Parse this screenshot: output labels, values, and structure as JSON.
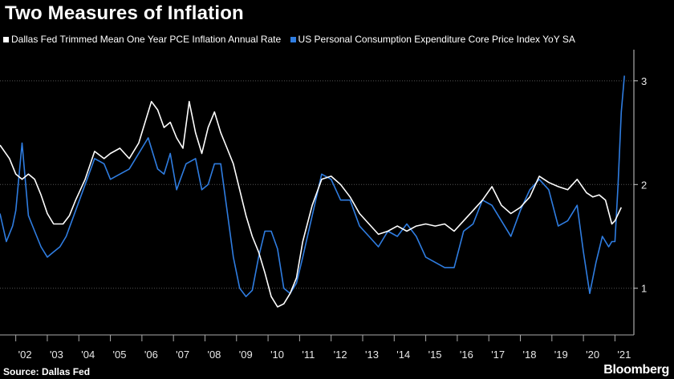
{
  "title": "Two Measures of Inflation",
  "source": "Source: Dallas Fed",
  "brand": "Bloomberg",
  "colors": {
    "background": "#000000",
    "series1": "#ffffff",
    "series2": "#2f7de1",
    "grid": "#555555"
  },
  "chart_data": {
    "type": "line",
    "title": "Two Measures of Inflation",
    "xlabel": "",
    "ylabel": "",
    "xlim": [
      2001.5,
      2021.6
    ],
    "ylim": [
      0.55,
      3.3
    ],
    "yticks": [
      1,
      2,
      3
    ],
    "xtick_labels": [
      "'02",
      "'03",
      "'04",
      "'05",
      "'06",
      "'07",
      "'08",
      "'09",
      "'10",
      "'11",
      "'12",
      "'13",
      "'14",
      "'15",
      "'16",
      "'17",
      "'18",
      "'19",
      "'20",
      "'21"
    ],
    "xtick_years": [
      2002,
      2003,
      2004,
      2005,
      2006,
      2007,
      2008,
      2009,
      2010,
      2011,
      2012,
      2013,
      2014,
      2015,
      2016,
      2017,
      2018,
      2019,
      2020,
      2021
    ],
    "grid": "horizontal-dotted",
    "legend_position": "top-left",
    "series": [
      {
        "name": "Dallas Fed Trimmed Mean One Year PCE Inflation Annual Rate",
        "color": "#ffffff",
        "x": [
          2001.5,
          2001.8,
          2002.0,
          2002.2,
          2002.4,
          2002.6,
          2002.8,
          2003.0,
          2003.2,
          2003.5,
          2003.7,
          2003.9,
          2004.2,
          2004.5,
          2004.8,
          2005.0,
          2005.3,
          2005.6,
          2005.9,
          2006.1,
          2006.3,
          2006.5,
          2006.7,
          2006.9,
          2007.1,
          2007.3,
          2007.5,
          2007.7,
          2007.9,
          2008.1,
          2008.3,
          2008.5,
          2008.7,
          2008.9,
          2009.1,
          2009.3,
          2009.5,
          2009.7,
          2009.9,
          2010.1,
          2010.3,
          2010.5,
          2010.7,
          2010.9,
          2011.1,
          2011.4,
          2011.7,
          2012.0,
          2012.3,
          2012.6,
          2012.9,
          2013.2,
          2013.5,
          2013.8,
          2014.1,
          2014.4,
          2014.7,
          2015.0,
          2015.3,
          2015.6,
          2015.9,
          2016.2,
          2016.5,
          2016.8,
          2017.1,
          2017.4,
          2017.7,
          2018.0,
          2018.3,
          2018.6,
          2018.9,
          2019.2,
          2019.5,
          2019.8,
          2020.1,
          2020.3,
          2020.5,
          2020.7,
          2020.9,
          2021.0,
          2021.2
        ],
        "values": [
          2.38,
          2.25,
          2.1,
          2.05,
          2.1,
          2.05,
          1.9,
          1.72,
          1.62,
          1.62,
          1.7,
          1.85,
          2.05,
          2.32,
          2.25,
          2.3,
          2.35,
          2.25,
          2.4,
          2.6,
          2.8,
          2.72,
          2.55,
          2.6,
          2.45,
          2.35,
          2.8,
          2.5,
          2.3,
          2.55,
          2.7,
          2.5,
          2.35,
          2.2,
          1.95,
          1.7,
          1.5,
          1.35,
          1.15,
          0.92,
          0.82,
          0.85,
          0.95,
          1.1,
          1.45,
          1.8,
          2.05,
          2.08,
          2.0,
          1.88,
          1.72,
          1.62,
          1.52,
          1.55,
          1.6,
          1.55,
          1.6,
          1.62,
          1.6,
          1.62,
          1.55,
          1.65,
          1.75,
          1.85,
          1.98,
          1.8,
          1.72,
          1.78,
          1.88,
          2.08,
          2.02,
          1.98,
          1.95,
          2.05,
          1.92,
          1.88,
          1.9,
          1.85,
          1.62,
          1.65,
          1.78
        ]
      },
      {
        "name": "US Personal Consumption Expenditure Core Price Index YoY SA",
        "color": "#2f7de1",
        "x": [
          2001.5,
          2001.7,
          2001.9,
          2002.0,
          2002.2,
          2002.4,
          2002.6,
          2002.8,
          2003.0,
          2003.2,
          2003.4,
          2003.6,
          2003.9,
          2004.2,
          2004.5,
          2004.8,
          2005.0,
          2005.3,
          2005.6,
          2005.9,
          2006.2,
          2006.5,
          2006.7,
          2006.9,
          2007.1,
          2007.4,
          2007.7,
          2007.9,
          2008.1,
          2008.3,
          2008.5,
          2008.7,
          2008.9,
          2009.1,
          2009.3,
          2009.5,
          2009.7,
          2009.9,
          2010.1,
          2010.3,
          2010.5,
          2010.7,
          2010.9,
          2011.1,
          2011.4,
          2011.7,
          2012.0,
          2012.3,
          2012.6,
          2012.9,
          2013.2,
          2013.5,
          2013.8,
          2014.1,
          2014.4,
          2014.7,
          2015.0,
          2015.3,
          2015.6,
          2015.9,
          2016.2,
          2016.5,
          2016.8,
          2017.1,
          2017.4,
          2017.7,
          2018.0,
          2018.3,
          2018.6,
          2018.9,
          2019.2,
          2019.5,
          2019.8,
          2020.0,
          2020.2,
          2020.4,
          2020.6,
          2020.8,
          2020.9,
          2021.0,
          2021.1,
          2021.2,
          2021.3
        ],
        "values": [
          1.72,
          1.45,
          1.6,
          1.75,
          2.4,
          1.7,
          1.55,
          1.4,
          1.3,
          1.35,
          1.4,
          1.5,
          1.75,
          2.0,
          2.25,
          2.2,
          2.05,
          2.1,
          2.15,
          2.3,
          2.45,
          2.15,
          2.1,
          2.3,
          1.95,
          2.2,
          2.25,
          1.95,
          2.0,
          2.2,
          2.2,
          1.75,
          1.3,
          1.0,
          0.92,
          0.98,
          1.3,
          1.55,
          1.55,
          1.38,
          1.0,
          0.95,
          1.05,
          1.3,
          1.7,
          2.1,
          2.05,
          1.85,
          1.85,
          1.6,
          1.5,
          1.4,
          1.55,
          1.5,
          1.62,
          1.5,
          1.3,
          1.25,
          1.2,
          1.2,
          1.55,
          1.62,
          1.85,
          1.8,
          1.65,
          1.5,
          1.75,
          1.95,
          2.05,
          1.95,
          1.6,
          1.65,
          1.8,
          1.35,
          0.95,
          1.25,
          1.5,
          1.4,
          1.45,
          1.45,
          2.0,
          2.7,
          3.05
        ]
      }
    ]
  }
}
